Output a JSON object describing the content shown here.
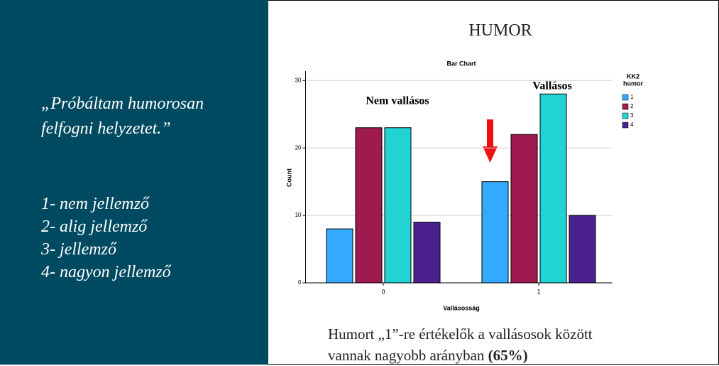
{
  "left_panel": {
    "quote_lines": [
      "„Próbáltam humorosan",
      "felfogni helyzetet.”"
    ],
    "scale": [
      "1- nem jellemző",
      "2- alig jellemző",
      "3- jellemző",
      "4- nagyon jellemző"
    ]
  },
  "slide_title": "HUMOR",
  "caption": {
    "text": "Humort „1”-re értékelők a vallásosok között vannak nagyobb arányban",
    "emphasis": "(65%)"
  },
  "chart_data": {
    "type": "bar",
    "title": "Bar Chart",
    "xlabel": "Vallásosság",
    "ylabel": "Count",
    "categories": [
      "0",
      "1"
    ],
    "legend_title": [
      "KK2",
      "humor"
    ],
    "series": [
      {
        "name": "1",
        "color": "#33aaff",
        "values": [
          8,
          15
        ]
      },
      {
        "name": "2",
        "color": "#9e1a4f",
        "values": [
          23,
          22
        ]
      },
      {
        "name": "3",
        "color": "#22d3d3",
        "values": [
          23,
          28
        ]
      },
      {
        "name": "4",
        "color": "#4b2190",
        "values": [
          9,
          10
        ]
      }
    ],
    "ylim": [
      0,
      31.4
    ],
    "yticks": [
      0,
      10,
      20,
      30
    ],
    "grid": true,
    "annotations": [
      "Nem vallásos",
      "Vallásos"
    ]
  }
}
